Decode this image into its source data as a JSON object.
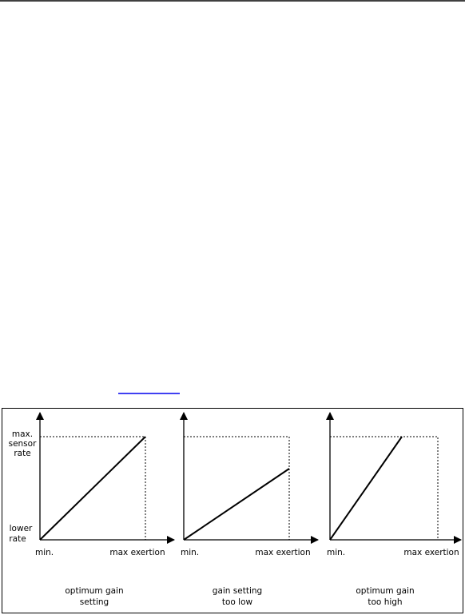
{
  "figure": {
    "y_axis_labels": {
      "top": [
        "max.",
        "sensor",
        "rate"
      ],
      "bottom": [
        "lower",
        "rate"
      ]
    },
    "panels": [
      {
        "x_min_label": "min.",
        "x_max_label": "max exertion",
        "caption": [
          "optimum gain",
          "setting"
        ]
      },
      {
        "x_min_label": "min.",
        "x_max_label": "max exertion",
        "caption": [
          "gain setting",
          "too low"
        ]
      },
      {
        "x_min_label": "min.",
        "x_max_label": "max exertion",
        "caption": [
          "optimum gain",
          "too high"
        ]
      }
    ]
  }
}
